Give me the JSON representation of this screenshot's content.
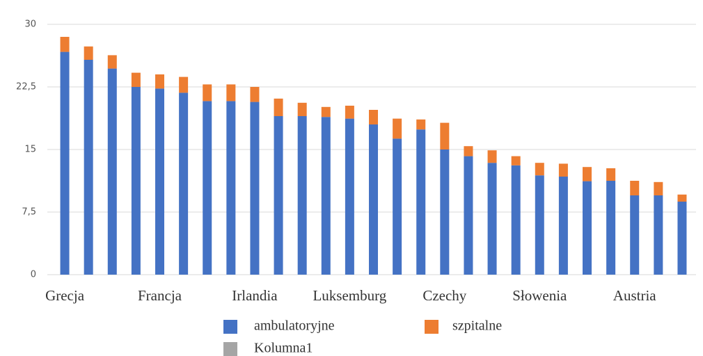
{
  "chart_data": {
    "type": "stacked_bar",
    "categories": [
      "Grecja",
      null,
      null,
      null,
      "Francja",
      null,
      null,
      null,
      "Irlandia",
      null,
      null,
      null,
      "Luksemburg",
      null,
      null,
      null,
      "Czechy",
      null,
      null,
      null,
      "Słowenia",
      null,
      null,
      null,
      "Austria",
      null,
      null
    ],
    "series": [
      {
        "name": "ambulatoryjne",
        "color": "#4472c4",
        "values": [
          26.7,
          25.75,
          24.7,
          22.5,
          22.3,
          21.8,
          20.8,
          20.8,
          20.7,
          19.0,
          19.0,
          18.9,
          18.7,
          18.0,
          16.3,
          17.4,
          15.0,
          14.2,
          13.4,
          13.1,
          11.9,
          11.75,
          11.2,
          11.25,
          9.5,
          9.5,
          8.75
        ]
      },
      {
        "name": "szpitalne",
        "color": "#ed7d31",
        "values": [
          1.8,
          1.6,
          1.6,
          1.7,
          1.7,
          1.9,
          2.0,
          2.0,
          1.8,
          2.1,
          1.6,
          1.2,
          1.55,
          1.75,
          2.4,
          1.2,
          3.2,
          1.2,
          1.5,
          1.1,
          1.5,
          1.55,
          1.7,
          1.5,
          1.75,
          1.6,
          0.85
        ]
      },
      {
        "name": "Kolumna1",
        "color": "#a5a5a5",
        "values": [
          null,
          null,
          null,
          null,
          null,
          null,
          null,
          null,
          null,
          null,
          null,
          null,
          null,
          null,
          null,
          null,
          null,
          null,
          null,
          null,
          null,
          null,
          null,
          null,
          null,
          null,
          null
        ]
      }
    ],
    "ylim": [
      0,
      30
    ],
    "yticks": [
      0,
      {
        "value": 7.5,
        "label": "7,5"
      },
      15,
      {
        "value": 22.5,
        "label": "22,5"
      },
      30
    ],
    "grid": true
  }
}
